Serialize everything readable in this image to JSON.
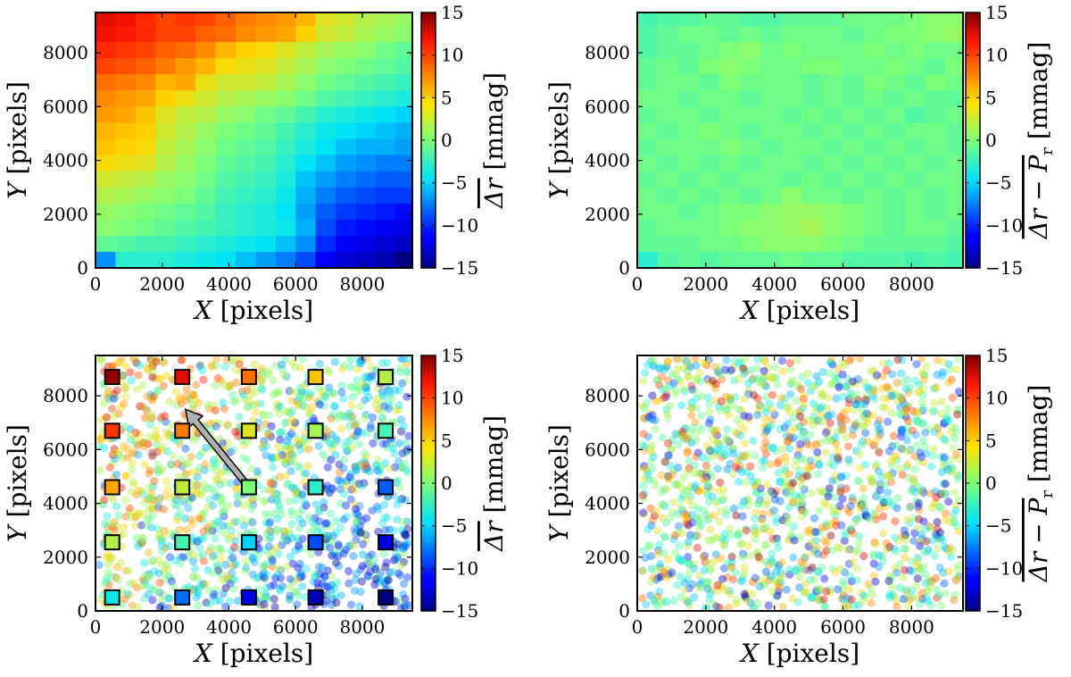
{
  "chart_data": [
    {
      "id": "top-left",
      "type": "heatmap",
      "title": "",
      "xlabel_var": "X",
      "xlabel_unit": "[pixels]",
      "ylabel_var": "Y",
      "ylabel_unit": "[pixels]",
      "colorbar_label": "Δr [mmag]",
      "colorbar_label_parts": [
        "Δr",
        " [mmag]"
      ],
      "xlim": [
        0,
        9500
      ],
      "ylim": [
        0,
        9500
      ],
      "xticks": [
        "0",
        "2000",
        "4000",
        "6000",
        "8000"
      ],
      "yticks": [
        "0",
        "2000",
        "4000",
        "6000",
        "8000"
      ],
      "xtick_values": [
        0,
        2000,
        4000,
        6000,
        8000
      ],
      "ytick_values": [
        0,
        2000,
        4000,
        6000,
        8000
      ],
      "clim": [
        -15,
        15
      ],
      "cbar_ticks": [
        "15",
        "10",
        "5",
        "0",
        "−5",
        "−10",
        "−15"
      ],
      "cbar_tick_values": [
        15,
        10,
        5,
        0,
        -5,
        -10,
        -15
      ],
      "grid_cell_size": 600,
      "grid_description": "16 x 16 grid of mean residuals in mmag; high (red) in upper-left, low (blue) in lower-right",
      "rows_top_to_bottom": [
        [
          12.5,
          12.0,
          11.0,
          10.0,
          10.5,
          10.0,
          9.0,
          8.0,
          7.5,
          7.0,
          6.0,
          3.5,
          3.0,
          2.0,
          1.5,
          1.0
        ],
        [
          12.0,
          11.5,
          11.0,
          10.0,
          10.0,
          9.0,
          8.5,
          7.5,
          7.0,
          6.5,
          5.0,
          3.0,
          2.5,
          1.5,
          1.0,
          0.5
        ],
        [
          11.0,
          10.5,
          10.0,
          9.0,
          8.5,
          7.5,
          6.0,
          5.0,
          4.5,
          3.5,
          2.5,
          1.5,
          1.0,
          0.5,
          -0.5,
          -1.0
        ],
        [
          10.0,
          9.5,
          9.0,
          8.0,
          7.0,
          6.0,
          4.5,
          4.0,
          3.5,
          2.5,
          1.5,
          0.5,
          0.0,
          -0.5,
          -1.0,
          -1.5
        ],
        [
          8.5,
          8.0,
          7.5,
          6.0,
          6.5,
          4.0,
          3.0,
          3.0,
          2.5,
          1.5,
          0.5,
          -0.5,
          -1.0,
          -1.5,
          -2.0,
          -2.5
        ],
        [
          7.5,
          7.0,
          6.5,
          5.0,
          4.0,
          3.0,
          2.0,
          1.5,
          1.0,
          0.5,
          -0.5,
          -1.5,
          -2.0,
          -2.5,
          -3.0,
          -3.5
        ],
        [
          7.0,
          6.5,
          5.5,
          3.5,
          2.5,
          2.0,
          1.0,
          0.5,
          -0.5,
          -1.0,
          -2.0,
          -3.0,
          -3.5,
          -4.0,
          -4.5,
          -5.0
        ],
        [
          6.0,
          5.5,
          5.0,
          3.0,
          2.0,
          1.0,
          0.0,
          -0.5,
          -1.0,
          -2.0,
          -3.0,
          -4.0,
          -4.5,
          -5.0,
          -5.5,
          -6.0
        ],
        [
          5.5,
          5.0,
          4.5,
          2.5,
          1.5,
          0.5,
          -0.5,
          -1.0,
          -1.5,
          -2.5,
          -3.5,
          -4.5,
          -5.5,
          -6.0,
          -6.0,
          -6.5
        ],
        [
          4.5,
          4.0,
          3.5,
          2.0,
          1.0,
          0.0,
          -1.0,
          -1.5,
          -2.0,
          -3.0,
          -4.5,
          -5.5,
          -6.5,
          -7.0,
          -7.5,
          -7.5
        ],
        [
          3.0,
          2.5,
          2.0,
          1.0,
          0.5,
          -0.5,
          -1.5,
          -2.0,
          -2.5,
          -3.5,
          -5.5,
          -6.5,
          -7.5,
          -8.0,
          -8.5,
          -8.5
        ],
        [
          2.0,
          1.5,
          1.0,
          0.5,
          0.0,
          -1.0,
          -2.0,
          -2.5,
          -3.0,
          -4.0,
          -6.0,
          -7.5,
          -8.5,
          -9.0,
          -9.5,
          -9.5
        ],
        [
          1.0,
          0.5,
          0.0,
          -0.5,
          -1.0,
          -1.5,
          -2.5,
          -3.0,
          -3.5,
          -4.5,
          -6.5,
          -8.5,
          -9.5,
          -10.0,
          -10.5,
          -11.0
        ],
        [
          0.5,
          0.0,
          -0.5,
          -1.0,
          -1.5,
          -2.0,
          -2.5,
          -3.0,
          -3.5,
          -4.0,
          -6.0,
          -9.0,
          -10.5,
          -11.0,
          -11.5,
          -12.0
        ],
        [
          -1.0,
          -1.5,
          -2.0,
          -2.0,
          -2.5,
          -3.0,
          -3.5,
          -4.0,
          -4.5,
          -5.5,
          -7.0,
          -10.0,
          -11.5,
          -12.0,
          -12.5,
          -13.0
        ],
        [
          -7.0,
          -3.0,
          -3.0,
          -3.0,
          -3.5,
          -4.0,
          -4.5,
          -5.5,
          -6.5,
          -7.5,
          -9.0,
          -11.5,
          -12.5,
          -13.0,
          -13.5,
          -15.0
        ]
      ]
    },
    {
      "id": "top-right",
      "type": "heatmap",
      "title": "",
      "xlabel_var": "X",
      "xlabel_unit": "[pixels]",
      "ylabel_var": "Y",
      "ylabel_unit": "[pixels]",
      "colorbar_label": "Δr − P_r [mmag]",
      "colorbar_label_parts": [
        "Δr − P",
        "r",
        " [mmag]"
      ],
      "xlim": [
        0,
        9500
      ],
      "ylim": [
        0,
        9500
      ],
      "xticks": [
        "0",
        "2000",
        "4000",
        "6000",
        "8000"
      ],
      "yticks": [
        "0",
        "2000",
        "4000",
        "6000",
        "8000"
      ],
      "xtick_values": [
        0,
        2000,
        4000,
        6000,
        8000
      ],
      "ytick_values": [
        0,
        2000,
        4000,
        6000,
        8000
      ],
      "clim": [
        -15,
        15
      ],
      "cbar_ticks": [
        "15",
        "10",
        "5",
        "0",
        "−5",
        "−10",
        "−15"
      ],
      "cbar_tick_values": [
        15,
        10,
        5,
        0,
        -5,
        -10,
        -15
      ],
      "grid_cell_size": 600,
      "grid_description": "16 x 16 grid of residuals after model subtraction, near zero everywhere",
      "rows_top_to_bottom": [
        [
          -2.0,
          -1.5,
          -1.5,
          -1.0,
          -1.0,
          -1.5,
          -1.5,
          -1.0,
          -1.0,
          -1.0,
          -0.5,
          -0.5,
          -0.5,
          0.0,
          0.5,
          0.5
        ],
        [
          -1.5,
          -1.0,
          -0.5,
          -0.5,
          -1.0,
          -0.5,
          -1.0,
          -0.5,
          -0.5,
          -0.5,
          -1.0,
          -0.5,
          0.0,
          0.0,
          0.5,
          1.0
        ],
        [
          -1.5,
          -1.0,
          -1.0,
          -0.5,
          0.0,
          0.5,
          -0.5,
          0.0,
          -0.5,
          -0.5,
          -0.5,
          0.0,
          -0.5,
          0.0,
          -0.5,
          -0.5
        ],
        [
          -1.0,
          -0.5,
          -1.0,
          0.0,
          0.5,
          0.0,
          -0.5,
          -0.5,
          0.0,
          0.0,
          -0.5,
          -0.5,
          0.0,
          -0.5,
          -1.0,
          0.0
        ],
        [
          -1.0,
          -0.5,
          -0.5,
          -1.0,
          0.0,
          -0.5,
          -0.5,
          -0.5,
          -1.0,
          -0.5,
          -1.0,
          0.0,
          -0.5,
          -1.0,
          0.0,
          -0.5
        ],
        [
          -0.5,
          -0.5,
          -1.0,
          -0.5,
          -0.5,
          -1.0,
          -0.5,
          -0.5,
          -1.0,
          -0.5,
          -1.0,
          -0.5,
          -1.0,
          -0.5,
          -1.0,
          -1.0
        ],
        [
          -1.0,
          -0.5,
          -0.5,
          -1.0,
          -0.5,
          -0.5,
          -0.5,
          -1.0,
          -0.5,
          -1.0,
          -0.5,
          -1.0,
          -0.5,
          -1.5,
          -1.0,
          -0.5
        ],
        [
          -0.5,
          -1.0,
          -0.5,
          0.0,
          -0.5,
          -1.0,
          -0.5,
          -0.5,
          -1.0,
          -0.5,
          -1.0,
          -0.5,
          -1.0,
          -0.5,
          -0.5,
          -1.0
        ],
        [
          -1.0,
          -0.5,
          -0.5,
          -0.5,
          0.0,
          -0.5,
          -1.0,
          -0.5,
          -0.5,
          -1.0,
          -0.5,
          -1.0,
          -0.5,
          -1.0,
          -0.5,
          -1.0
        ],
        [
          -0.5,
          -1.0,
          -0.5,
          -1.0,
          -0.5,
          -1.0,
          -0.5,
          -0.5,
          -1.0,
          -0.5,
          -1.0,
          -0.5,
          -1.0,
          -0.5,
          -1.0,
          -0.5
        ],
        [
          -1.0,
          -0.5,
          -1.0,
          -0.5,
          -1.0,
          -0.5,
          -0.5,
          -1.0,
          -0.5,
          -1.0,
          -0.5,
          -1.0,
          -0.5,
          -1.0,
          -0.5,
          -0.5
        ],
        [
          -0.5,
          -1.0,
          -0.5,
          -1.0,
          -0.5,
          -1.0,
          -0.5,
          0.5,
          -0.5,
          -0.5,
          -1.0,
          -0.5,
          -1.0,
          -0.5,
          -1.0,
          -0.5
        ],
        [
          -0.5,
          -0.5,
          -1.0,
          -0.5,
          0.0,
          0.0,
          0.5,
          1.0,
          1.0,
          0.5,
          0.0,
          -0.5,
          -1.0,
          -0.5,
          -1.0,
          -0.5
        ],
        [
          -1.0,
          -0.5,
          -0.5,
          -0.5,
          0.0,
          0.5,
          0.5,
          1.0,
          1.5,
          0.5,
          0.0,
          -0.5,
          -1.0,
          -0.5,
          -0.5,
          -1.0
        ],
        [
          -1.0,
          -1.0,
          -1.0,
          -0.5,
          -0.5,
          0.0,
          0.5,
          0.5,
          0.5,
          0.0,
          -0.5,
          -1.0,
          -1.0,
          -1.0,
          -1.0,
          -1.5
        ],
        [
          -3.0,
          -1.5,
          -1.0,
          -1.5,
          -1.0,
          -1.0,
          -1.0,
          -0.5,
          -1.0,
          -1.0,
          -1.5,
          -1.5,
          -1.5,
          -2.0,
          -1.5,
          -2.0
        ]
      ]
    },
    {
      "id": "bottom-left",
      "type": "scatter",
      "title": "",
      "xlabel_var": "X",
      "xlabel_unit": "[pixels]",
      "ylabel_var": "Y",
      "ylabel_unit": "[pixels]",
      "colorbar_label": "Δr [mmag]",
      "colorbar_label_parts": [
        "Δr",
        " [mmag]"
      ],
      "xlim": [
        0,
        9500
      ],
      "ylim": [
        0,
        9500
      ],
      "xticks": [
        "0",
        "2000",
        "4000",
        "6000",
        "8000"
      ],
      "yticks": [
        "0",
        "2000",
        "4000",
        "6000",
        "8000"
      ],
      "xtick_values": [
        0,
        2000,
        4000,
        6000,
        8000
      ],
      "ytick_values": [
        0,
        2000,
        4000,
        6000,
        8000
      ],
      "clim": [
        -15,
        15
      ],
      "cbar_ticks": [
        "15",
        "10",
        "5",
        "0",
        "−5",
        "−10",
        "−15"
      ],
      "cbar_tick_values": [
        15,
        10,
        5,
        0,
        -5,
        -10,
        -15
      ],
      "scatter_description": "~1500 semi-transparent circular points; colour trend high in upper-left, low in lower-right",
      "scatter_count": 1500,
      "scatter_seed": 7,
      "scatter_model": "gradient",
      "scatter_noise": 5,
      "squares": [
        {
          "x": 500,
          "y": 8700,
          "value": 14.5
        },
        {
          "x": 2600,
          "y": 8700,
          "value": 12.5
        },
        {
          "x": 4600,
          "y": 8700,
          "value": 8.5
        },
        {
          "x": 6600,
          "y": 8700,
          "value": 5.5
        },
        {
          "x": 8700,
          "y": 8700,
          "value": 2.0
        },
        {
          "x": 500,
          "y": 6700,
          "value": 10.5
        },
        {
          "x": 2600,
          "y": 6700,
          "value": 8.0
        },
        {
          "x": 4600,
          "y": 6700,
          "value": 3.5
        },
        {
          "x": 6600,
          "y": 6700,
          "value": 1.5
        },
        {
          "x": 8700,
          "y": 6700,
          "value": -2.0
        },
        {
          "x": 500,
          "y": 4600,
          "value": 6.5
        },
        {
          "x": 2600,
          "y": 4600,
          "value": 2.5
        },
        {
          "x": 4600,
          "y": 4600,
          "value": 0.0
        },
        {
          "x": 6600,
          "y": 4600,
          "value": -3.0
        },
        {
          "x": 8700,
          "y": 4600,
          "value": -8.5
        },
        {
          "x": 500,
          "y": 2550,
          "value": 2.0
        },
        {
          "x": 2600,
          "y": 2550,
          "value": -2.0
        },
        {
          "x": 4600,
          "y": 2550,
          "value": -5.0
        },
        {
          "x": 6600,
          "y": 2550,
          "value": -9.0
        },
        {
          "x": 8700,
          "y": 2550,
          "value": -12.0
        },
        {
          "x": 500,
          "y": 500,
          "value": -4.0
        },
        {
          "x": 2600,
          "y": 500,
          "value": -8.0
        },
        {
          "x": 4600,
          "y": 500,
          "value": -12.0
        },
        {
          "x": 6600,
          "y": 500,
          "value": -13.5
        },
        {
          "x": 8700,
          "y": 500,
          "value": -15.0
        }
      ],
      "arrow": {
        "from": [
          4600,
          4600
        ],
        "to": [
          2700,
          7500
        ]
      }
    },
    {
      "id": "bottom-right",
      "type": "scatter",
      "title": "",
      "xlabel_var": "X",
      "xlabel_unit": "[pixels]",
      "ylabel_var": "Y",
      "ylabel_unit": "[pixels]",
      "colorbar_label": "Δr − P_r [mmag]",
      "colorbar_label_parts": [
        "Δr − P",
        "r",
        " [mmag]"
      ],
      "xlim": [
        0,
        9500
      ],
      "ylim": [
        0,
        9500
      ],
      "xticks": [
        "0",
        "2000",
        "4000",
        "6000",
        "8000"
      ],
      "yticks": [
        "0",
        "2000",
        "4000",
        "6000",
        "8000"
      ],
      "xtick_values": [
        0,
        2000,
        4000,
        6000,
        8000
      ],
      "ytick_values": [
        0,
        2000,
        4000,
        6000,
        8000
      ],
      "clim": [
        -15,
        15
      ],
      "cbar_ticks": [
        "15",
        "10",
        "5",
        "0",
        "−5",
        "−10",
        "−15"
      ],
      "cbar_tick_values": [
        15,
        10,
        5,
        0,
        -5,
        -10,
        -15
      ],
      "scatter_description": "~1500 semi-transparent circular points; residual colours random with no spatial trend",
      "scatter_count": 1500,
      "scatter_seed": 19,
      "scatter_model": "random",
      "scatter_noise": 6
    }
  ]
}
